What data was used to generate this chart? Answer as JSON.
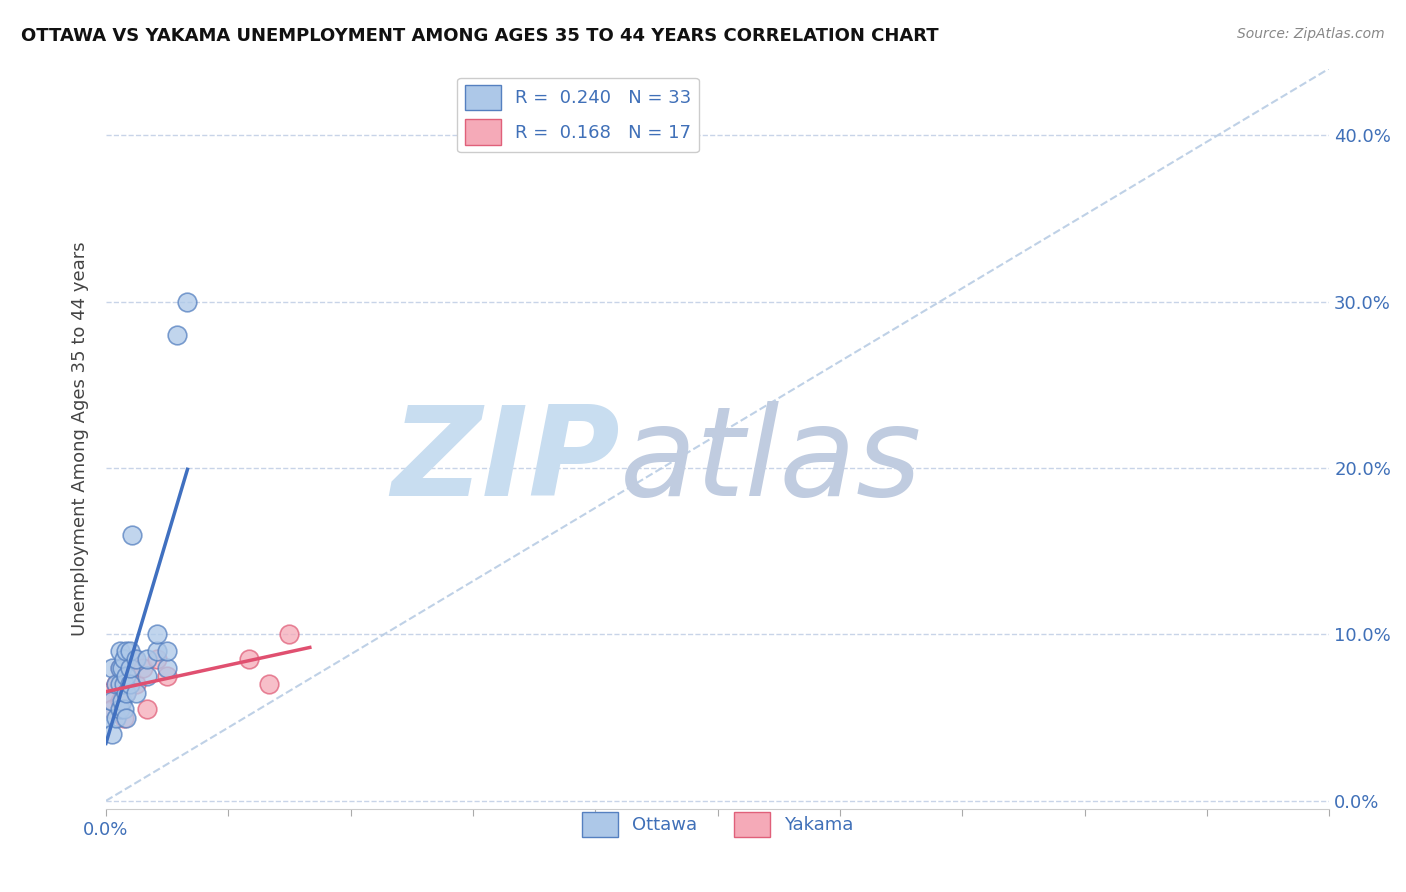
{
  "title": "OTTAWA VS YAKAMA UNEMPLOYMENT AMONG AGES 35 TO 44 YEARS CORRELATION CHART",
  "source": "Source: ZipAtlas.com",
  "ylabel": "Unemployment Among Ages 35 to 44 years",
  "xlim": [
    0.0,
    0.6
  ],
  "ylim": [
    -0.005,
    0.44
  ],
  "xtick_positions": [
    0.0,
    0.06,
    0.12,
    0.18,
    0.24,
    0.3,
    0.36,
    0.42,
    0.48,
    0.54,
    0.6
  ],
  "xtick_labels_show": {
    "0.0": "0.0%"
  },
  "ytick_positions": [
    0.0,
    0.1,
    0.2,
    0.3,
    0.4
  ],
  "ytick_labels": [
    "0.0%",
    "10.0%",
    "20.0%",
    "30.0%",
    "40.0%"
  ],
  "ottawa_R": 0.24,
  "ottawa_N": 33,
  "yakama_R": 0.168,
  "yakama_N": 17,
  "ottawa_color": "#adc8e8",
  "yakama_color": "#f5aab8",
  "ottawa_edge_color": "#5580c0",
  "yakama_edge_color": "#e0607a",
  "ottawa_line_color": "#4070c0",
  "yakama_line_color": "#e05070",
  "diag_line_color": "#b8cce4",
  "ottawa_scatter_x": [
    0.0,
    0.003,
    0.003,
    0.003,
    0.005,
    0.005,
    0.007,
    0.007,
    0.007,
    0.007,
    0.008,
    0.008,
    0.009,
    0.009,
    0.009,
    0.01,
    0.01,
    0.01,
    0.01,
    0.012,
    0.012,
    0.012,
    0.013,
    0.015,
    0.015,
    0.02,
    0.02,
    0.025,
    0.025,
    0.03,
    0.03,
    0.035,
    0.04
  ],
  "ottawa_scatter_y": [
    0.05,
    0.04,
    0.06,
    0.08,
    0.05,
    0.07,
    0.055,
    0.07,
    0.08,
    0.09,
    0.06,
    0.08,
    0.055,
    0.07,
    0.085,
    0.05,
    0.065,
    0.075,
    0.09,
    0.07,
    0.08,
    0.09,
    0.16,
    0.065,
    0.085,
    0.075,
    0.085,
    0.09,
    0.1,
    0.08,
    0.09,
    0.28,
    0.3
  ],
  "yakama_scatter_x": [
    0.0,
    0.003,
    0.005,
    0.007,
    0.007,
    0.009,
    0.01,
    0.012,
    0.014,
    0.015,
    0.018,
    0.02,
    0.025,
    0.03,
    0.07,
    0.08,
    0.09
  ],
  "yakama_scatter_y": [
    0.065,
    0.055,
    0.07,
    0.06,
    0.08,
    0.05,
    0.065,
    0.075,
    0.085,
    0.07,
    0.08,
    0.055,
    0.085,
    0.075,
    0.085,
    0.07,
    0.1
  ],
  "ottawa_regline_x": [
    0.0,
    0.04
  ],
  "yakama_regline_x": [
    0.0,
    0.1
  ],
  "diag_line_x": [
    0.0,
    0.6
  ],
  "diag_line_y": [
    0.0,
    0.44
  ],
  "background_color": "#ffffff",
  "grid_color": "#c8d4e8",
  "watermark_zip": "ZIP",
  "watermark_atlas": "atlas",
  "watermark_color_zip": "#c8ddf0",
  "watermark_color_atlas": "#c0cce0",
  "tick_label_color": "#4070b8"
}
